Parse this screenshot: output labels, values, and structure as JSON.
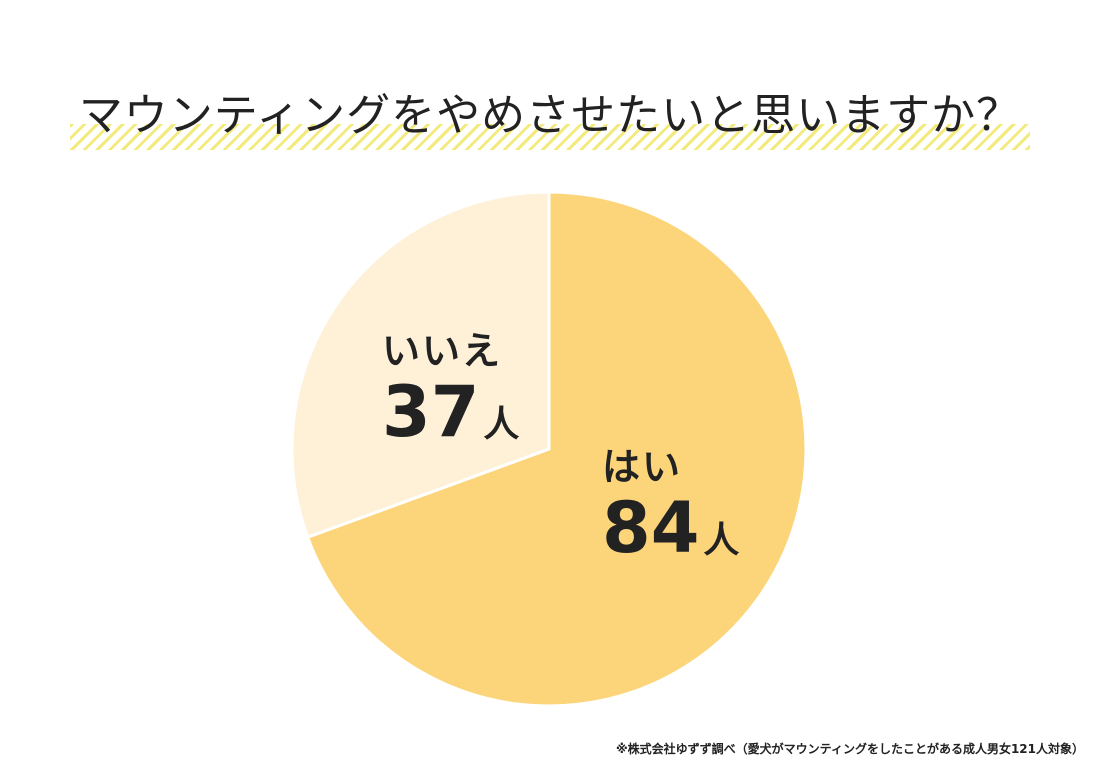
{
  "chart_data": {
    "type": "pie",
    "title": "マウンティングをやめさせたいと思いますか？",
    "slices": [
      {
        "label": "はい",
        "value": 84,
        "unit": "人",
        "color": "#fcd57a"
      },
      {
        "label": "いいえ",
        "value": 37,
        "unit": "人",
        "color": "#fef1d8"
      }
    ],
    "start_angle_deg": 0,
    "direction": "clockwise",
    "legend": "none",
    "separator_color": "#ffffff"
  },
  "footnote": "※株式会社ゆずず調べ（愛犬がマウンティングをしたことがある成人男女121人対象）"
}
